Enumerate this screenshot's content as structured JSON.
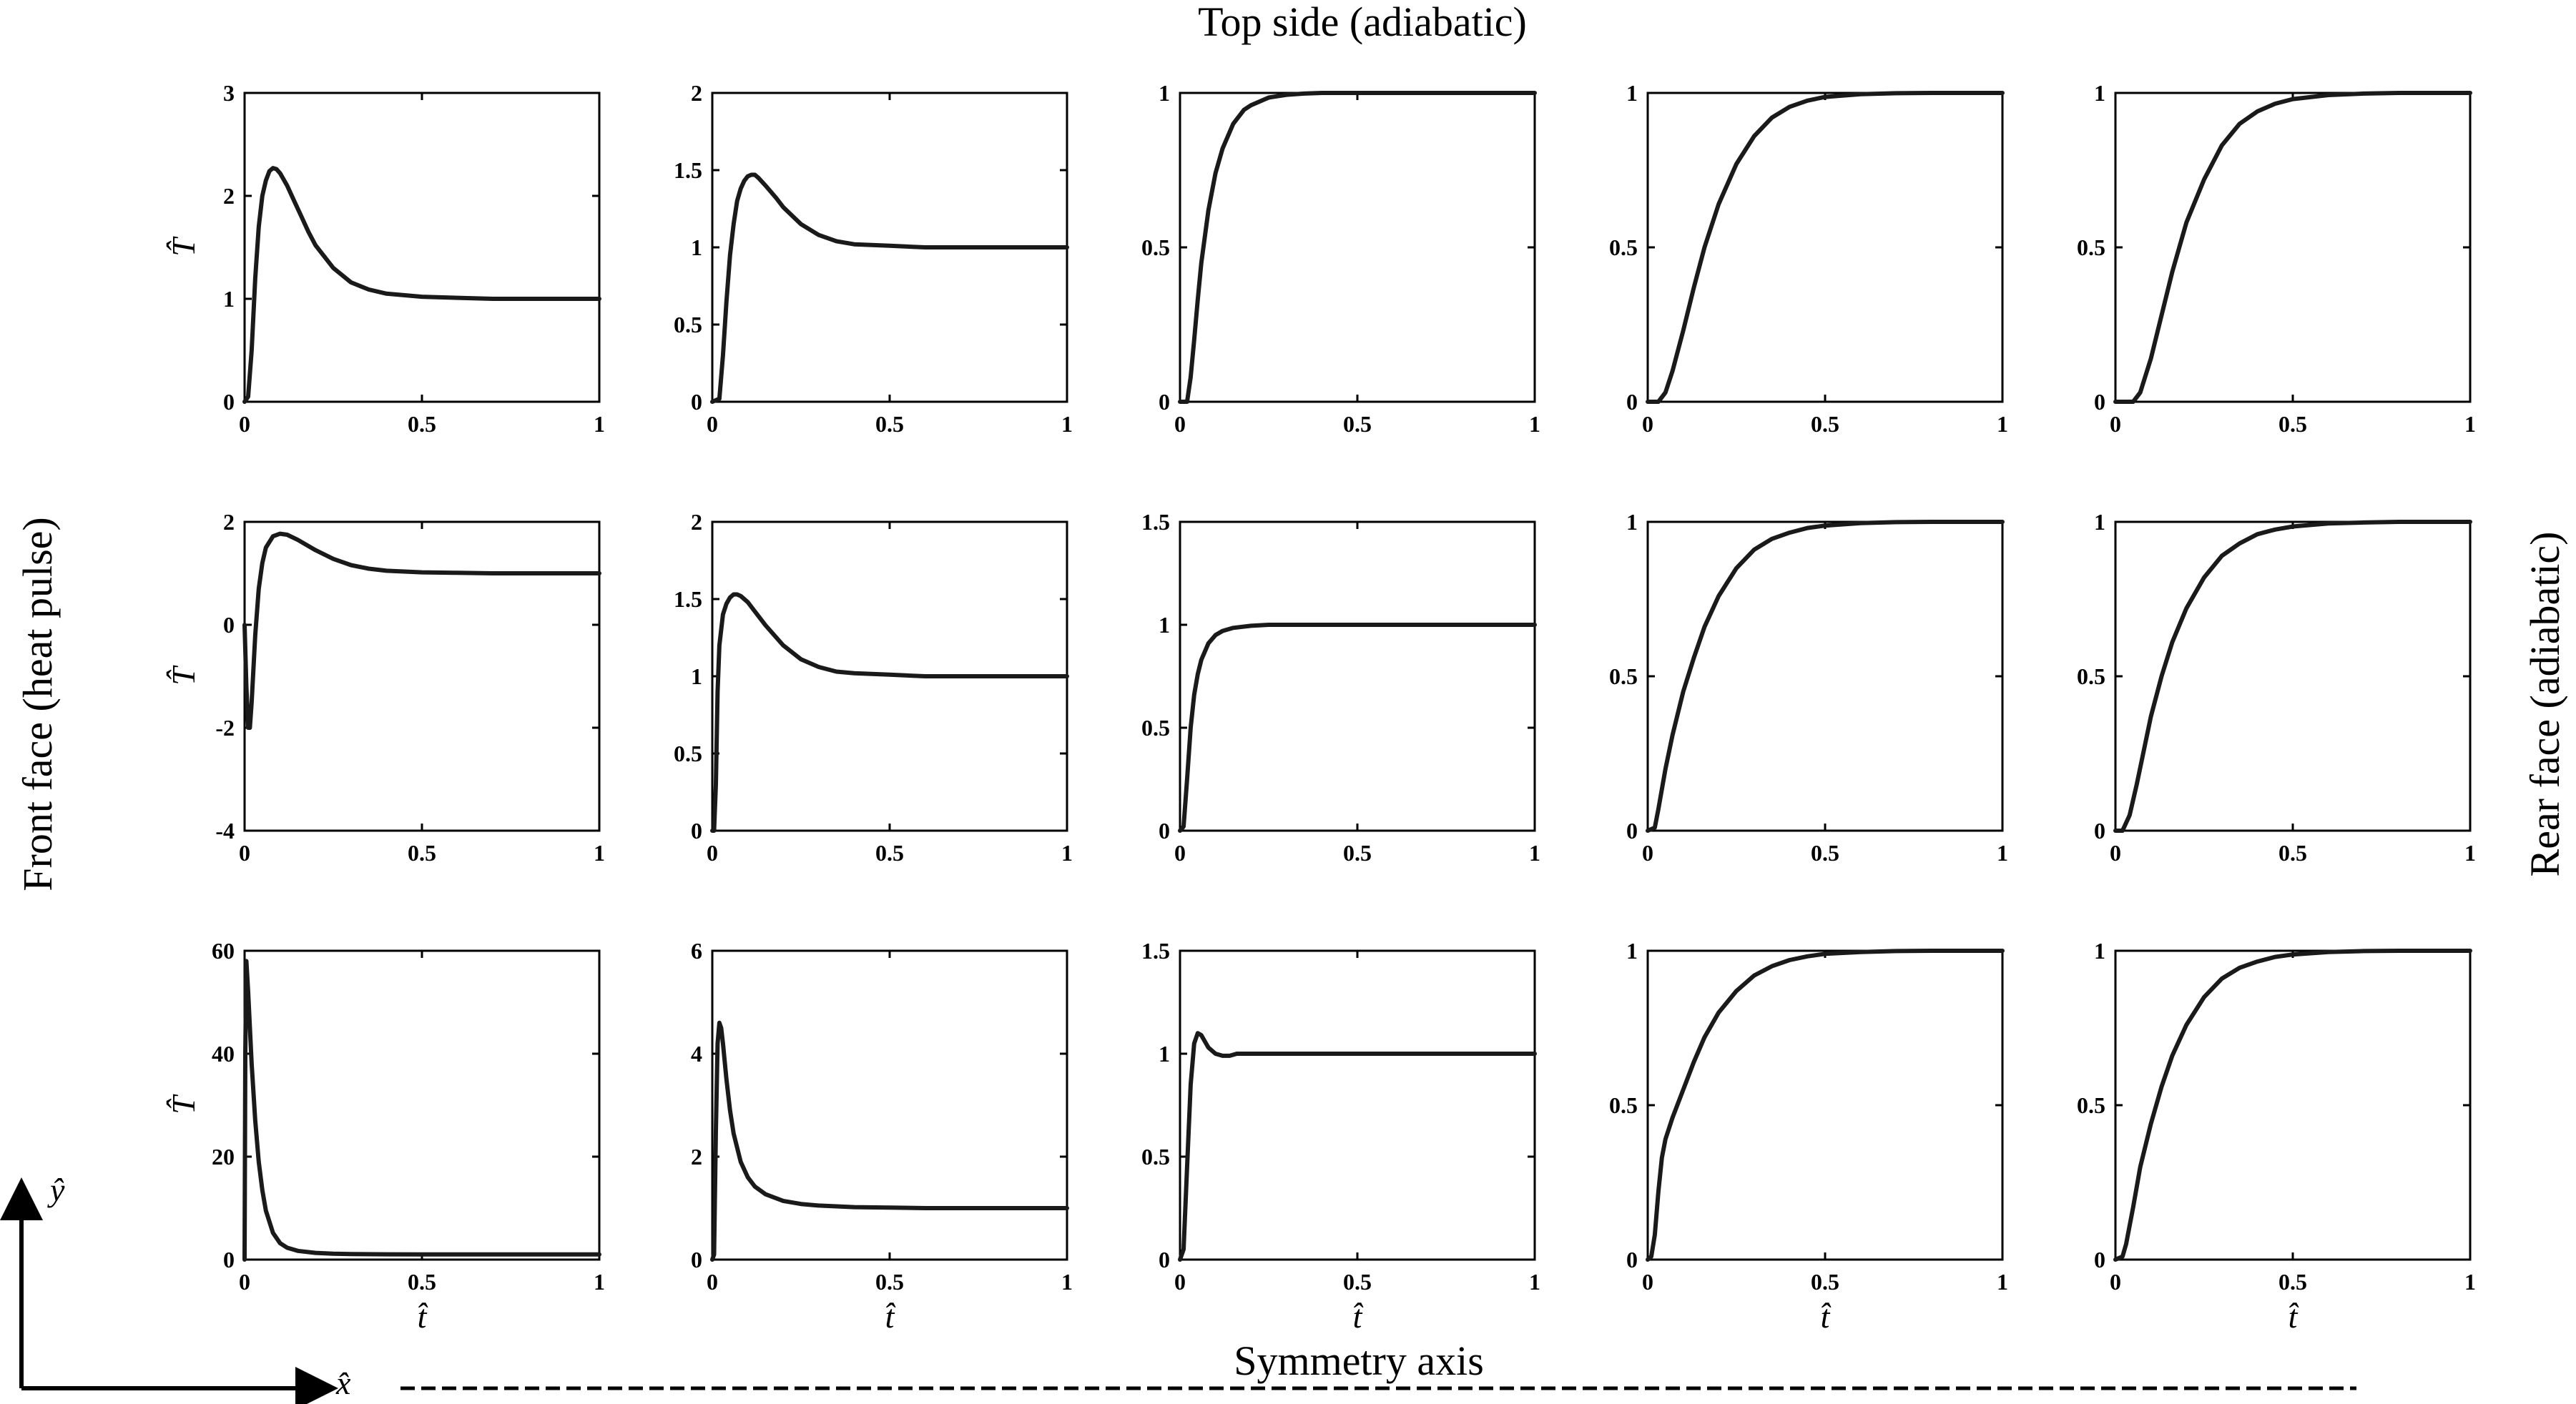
{
  "labels": {
    "top": "Top side (adiabatic)",
    "left": "Front face (heat pulse)",
    "right": "Rear face (adiabatic)",
    "bottom": "Symmetry axis",
    "x_arrow": "x̂",
    "y_arrow": "ŷ"
  },
  "colors": {
    "curve": "#1a1a1a",
    "axes": "#000000"
  },
  "chart_data": [
    {
      "type": "line",
      "row": 0,
      "col": 0,
      "xlim": [
        0,
        1
      ],
      "ylim": [
        0,
        3
      ],
      "xticks": [
        "0",
        "0.5",
        "1"
      ],
      "yticks": [
        "0",
        "1",
        "2",
        "3"
      ],
      "ylabel": "T̂",
      "xlabel": "",
      "x": [
        0,
        0.01,
        0.02,
        0.03,
        0.04,
        0.05,
        0.06,
        0.07,
        0.08,
        0.09,
        0.1,
        0.12,
        0.14,
        0.16,
        0.18,
        0.2,
        0.25,
        0.3,
        0.35,
        0.4,
        0.5,
        0.6,
        0.7,
        0.8,
        0.9,
        1.0
      ],
      "y": [
        0,
        0.05,
        0.5,
        1.2,
        1.7,
        2.0,
        2.15,
        2.24,
        2.27,
        2.26,
        2.22,
        2.1,
        1.95,
        1.8,
        1.65,
        1.52,
        1.3,
        1.16,
        1.09,
        1.05,
        1.02,
        1.01,
        1.0,
        1.0,
        1.0,
        1.0
      ]
    },
    {
      "type": "line",
      "row": 0,
      "col": 1,
      "xlim": [
        0,
        1
      ],
      "ylim": [
        0,
        2
      ],
      "xticks": [
        "0",
        "0.5",
        "1"
      ],
      "yticks": [
        "0",
        "0.5",
        "1",
        "1.5",
        "2"
      ],
      "xlabel": "",
      "x": [
        0,
        0.02,
        0.03,
        0.04,
        0.05,
        0.06,
        0.07,
        0.08,
        0.09,
        0.1,
        0.11,
        0.12,
        0.13,
        0.15,
        0.18,
        0.2,
        0.25,
        0.3,
        0.35,
        0.4,
        0.5,
        0.6,
        0.7,
        0.8,
        0.9,
        1.0
      ],
      "y": [
        0,
        0.02,
        0.3,
        0.65,
        0.95,
        1.15,
        1.3,
        1.38,
        1.43,
        1.46,
        1.47,
        1.47,
        1.45,
        1.4,
        1.32,
        1.26,
        1.15,
        1.08,
        1.04,
        1.02,
        1.01,
        1.0,
        1.0,
        1.0,
        1.0,
        1.0
      ]
    },
    {
      "type": "line",
      "row": 0,
      "col": 2,
      "xlim": [
        0,
        1
      ],
      "ylim": [
        0,
        1
      ],
      "xticks": [
        "0",
        "0.5",
        "1"
      ],
      "yticks": [
        "0",
        "0.5",
        "1"
      ],
      "xlabel": "",
      "x": [
        0,
        0.02,
        0.03,
        0.04,
        0.05,
        0.06,
        0.08,
        0.1,
        0.12,
        0.15,
        0.18,
        0.2,
        0.25,
        0.3,
        0.35,
        0.4,
        0.5,
        0.6,
        0.7,
        0.8,
        0.9,
        1.0
      ],
      "y": [
        0,
        0,
        0.08,
        0.2,
        0.33,
        0.45,
        0.62,
        0.74,
        0.82,
        0.9,
        0.945,
        0.96,
        0.985,
        0.994,
        0.998,
        1.0,
        1.0,
        1.0,
        1.0,
        1.0,
        1.0,
        1.0
      ]
    },
    {
      "type": "line",
      "row": 0,
      "col": 3,
      "xlim": [
        0,
        1
      ],
      "ylim": [
        0,
        1
      ],
      "xticks": [
        "0",
        "0.5",
        "1"
      ],
      "yticks": [
        "0",
        "0.5",
        "1"
      ],
      "xlabel": "",
      "x": [
        0,
        0.03,
        0.05,
        0.07,
        0.1,
        0.13,
        0.16,
        0.2,
        0.25,
        0.3,
        0.35,
        0.4,
        0.45,
        0.5,
        0.6,
        0.7,
        0.8,
        0.9,
        1.0
      ],
      "y": [
        0,
        0,
        0.03,
        0.1,
        0.23,
        0.37,
        0.5,
        0.64,
        0.77,
        0.86,
        0.92,
        0.955,
        0.975,
        0.987,
        0.996,
        0.999,
        1.0,
        1.0,
        1.0
      ]
    },
    {
      "type": "line",
      "row": 0,
      "col": 4,
      "xlim": [
        0,
        1
      ],
      "ylim": [
        0,
        1
      ],
      "xticks": [
        "0",
        "0.5",
        "1"
      ],
      "yticks": [
        "0",
        "0.5",
        "1"
      ],
      "xlabel": "",
      "x": [
        0,
        0.05,
        0.07,
        0.1,
        0.13,
        0.16,
        0.2,
        0.25,
        0.3,
        0.35,
        0.4,
        0.45,
        0.5,
        0.6,
        0.7,
        0.8,
        0.9,
        1.0
      ],
      "y": [
        0,
        0,
        0.03,
        0.14,
        0.28,
        0.42,
        0.58,
        0.72,
        0.83,
        0.9,
        0.94,
        0.965,
        0.98,
        0.993,
        0.998,
        1.0,
        1.0,
        1.0
      ]
    },
    {
      "type": "line",
      "row": 1,
      "col": 0,
      "xlim": [
        0,
        1
      ],
      "ylim": [
        -4,
        2
      ],
      "xticks": [
        "0",
        "0.5",
        "1"
      ],
      "yticks": [
        "-4",
        "-2",
        "0",
        "2"
      ],
      "ylabel": "T̂",
      "xlabel": "",
      "x": [
        0,
        0.005,
        0.01,
        0.015,
        0.02,
        0.03,
        0.04,
        0.05,
        0.06,
        0.08,
        0.1,
        0.12,
        0.15,
        0.2,
        0.25,
        0.3,
        0.35,
        0.4,
        0.5,
        0.6,
        0.7,
        0.8,
        0.9,
        1.0
      ],
      "y": [
        0,
        -1.2,
        -2.0,
        -2.0,
        -1.5,
        -0.2,
        0.7,
        1.2,
        1.5,
        1.72,
        1.77,
        1.75,
        1.65,
        1.45,
        1.28,
        1.16,
        1.09,
        1.05,
        1.02,
        1.01,
        1.0,
        1.0,
        1.0,
        1.0
      ]
    },
    {
      "type": "line",
      "row": 1,
      "col": 1,
      "xlim": [
        0,
        1
      ],
      "ylim": [
        0,
        2
      ],
      "xticks": [
        "0",
        "0.5",
        "1"
      ],
      "yticks": [
        "0",
        "0.5",
        "1",
        "1.5",
        "2"
      ],
      "xlabel": "",
      "x": [
        0,
        0.005,
        0.01,
        0.015,
        0.02,
        0.03,
        0.04,
        0.05,
        0.06,
        0.07,
        0.08,
        0.1,
        0.12,
        0.15,
        0.2,
        0.25,
        0.3,
        0.35,
        0.4,
        0.5,
        0.6,
        0.7,
        0.8,
        0.9,
        1.0
      ],
      "y": [
        0,
        0,
        0.3,
        0.9,
        1.2,
        1.4,
        1.47,
        1.51,
        1.53,
        1.53,
        1.52,
        1.48,
        1.42,
        1.33,
        1.2,
        1.11,
        1.06,
        1.03,
        1.02,
        1.01,
        1.0,
        1.0,
        1.0,
        1.0,
        1.0
      ]
    },
    {
      "type": "line",
      "row": 1,
      "col": 2,
      "xlim": [
        0,
        1
      ],
      "ylim": [
        0,
        1.5
      ],
      "xticks": [
        "0",
        "0.5",
        "1"
      ],
      "yticks": [
        "0",
        "0.5",
        "1",
        "1.5"
      ],
      "xlabel": "",
      "x": [
        0,
        0.01,
        0.02,
        0.03,
        0.04,
        0.05,
        0.06,
        0.08,
        0.1,
        0.12,
        0.15,
        0.2,
        0.25,
        0.3,
        0.4,
        0.5,
        0.6,
        0.7,
        0.8,
        0.9,
        1.0
      ],
      "y": [
        0,
        0.02,
        0.25,
        0.5,
        0.66,
        0.76,
        0.83,
        0.91,
        0.95,
        0.97,
        0.985,
        0.995,
        1.0,
        1.0,
        1.0,
        1.0,
        1.0,
        1.0,
        1.0,
        1.0,
        1.0
      ]
    },
    {
      "type": "line",
      "row": 1,
      "col": 3,
      "xlim": [
        0,
        1
      ],
      "ylim": [
        0,
        1
      ],
      "xticks": [
        "0",
        "0.5",
        "1"
      ],
      "yticks": [
        "0",
        "0.5",
        "1"
      ],
      "xlabel": "",
      "x": [
        0,
        0.02,
        0.03,
        0.05,
        0.07,
        0.1,
        0.13,
        0.16,
        0.2,
        0.25,
        0.3,
        0.35,
        0.4,
        0.45,
        0.5,
        0.6,
        0.7,
        0.8,
        0.9,
        1.0
      ],
      "y": [
        0,
        0.01,
        0.07,
        0.2,
        0.31,
        0.45,
        0.56,
        0.66,
        0.76,
        0.85,
        0.91,
        0.945,
        0.965,
        0.98,
        0.988,
        0.996,
        0.999,
        1.0,
        1.0,
        1.0
      ]
    },
    {
      "type": "line",
      "row": 1,
      "col": 4,
      "xlim": [
        0,
        1
      ],
      "ylim": [
        0,
        1
      ],
      "xticks": [
        "0",
        "0.5",
        "1"
      ],
      "yticks": [
        "0",
        "0.5",
        "1"
      ],
      "xlabel": "",
      "x": [
        0,
        0.02,
        0.04,
        0.06,
        0.08,
        0.1,
        0.13,
        0.16,
        0.2,
        0.25,
        0.3,
        0.35,
        0.4,
        0.45,
        0.5,
        0.6,
        0.7,
        0.8,
        0.9,
        1.0
      ],
      "y": [
        0,
        0,
        0.05,
        0.15,
        0.26,
        0.37,
        0.5,
        0.61,
        0.72,
        0.82,
        0.89,
        0.93,
        0.96,
        0.975,
        0.985,
        0.995,
        0.998,
        1.0,
        1.0,
        1.0
      ]
    },
    {
      "type": "line",
      "row": 2,
      "col": 0,
      "xlim": [
        0,
        1
      ],
      "ylim": [
        0,
        60
      ],
      "xticks": [
        "0",
        "0.5",
        "1"
      ],
      "yticks": [
        "0",
        "20",
        "40",
        "60"
      ],
      "ylabel": "T̂",
      "xlabel": "t̂",
      "x": [
        0,
        0.002,
        0.005,
        0.01,
        0.02,
        0.03,
        0.04,
        0.05,
        0.06,
        0.08,
        0.1,
        0.12,
        0.15,
        0.2,
        0.25,
        0.3,
        0.4,
        0.5,
        0.6,
        0.7,
        0.8,
        0.9,
        1.0
      ],
      "y": [
        0,
        40,
        58,
        52,
        38,
        27,
        19,
        13.5,
        9.5,
        5.2,
        3.2,
        2.3,
        1.7,
        1.3,
        1.15,
        1.08,
        1.03,
        1.01,
        1.0,
        1.0,
        1.0,
        1.0,
        1.0
      ]
    },
    {
      "type": "line",
      "row": 2,
      "col": 1,
      "xlim": [
        0,
        1
      ],
      "ylim": [
        0,
        6
      ],
      "xticks": [
        "0",
        "0.5",
        "1"
      ],
      "yticks": [
        "0",
        "2",
        "4",
        "6"
      ],
      "xlabel": "t̂",
      "x": [
        0,
        0.005,
        0.01,
        0.015,
        0.02,
        0.025,
        0.03,
        0.04,
        0.05,
        0.06,
        0.08,
        0.1,
        0.12,
        0.15,
        0.2,
        0.25,
        0.3,
        0.4,
        0.5,
        0.6,
        0.7,
        0.8,
        0.9,
        1.0
      ],
      "y": [
        0,
        0.1,
        2.5,
        4.2,
        4.6,
        4.5,
        4.2,
        3.5,
        2.9,
        2.45,
        1.9,
        1.6,
        1.42,
        1.27,
        1.14,
        1.08,
        1.05,
        1.02,
        1.01,
        1.0,
        1.0,
        1.0,
        1.0,
        1.0
      ]
    },
    {
      "type": "line",
      "row": 2,
      "col": 2,
      "xlim": [
        0,
        1
      ],
      "ylim": [
        0,
        1.5
      ],
      "xticks": [
        "0",
        "0.5",
        "1"
      ],
      "yticks": [
        "0",
        "0.5",
        "1",
        "1.5"
      ],
      "xlabel": "t̂",
      "x": [
        0,
        0.01,
        0.02,
        0.03,
        0.04,
        0.05,
        0.06,
        0.07,
        0.08,
        0.1,
        0.12,
        0.14,
        0.16,
        0.2,
        0.25,
        0.3,
        0.4,
        0.5,
        0.6,
        0.7,
        0.8,
        0.9,
        1.0
      ],
      "y": [
        0,
        0.05,
        0.45,
        0.85,
        1.05,
        1.1,
        1.09,
        1.06,
        1.03,
        1.0,
        0.99,
        0.99,
        1.0,
        1.0,
        1.0,
        1.0,
        1.0,
        1.0,
        1.0,
        1.0,
        1.0,
        1.0,
        1.0
      ]
    },
    {
      "type": "line",
      "row": 2,
      "col": 3,
      "xlim": [
        0,
        1
      ],
      "ylim": [
        0,
        1
      ],
      "xticks": [
        "0",
        "0.5",
        "1"
      ],
      "yticks": [
        "0",
        "0.5",
        "1"
      ],
      "xlabel": "t̂",
      "x": [
        0,
        0.01,
        0.02,
        0.03,
        0.04,
        0.05,
        0.07,
        0.1,
        0.13,
        0.16,
        0.2,
        0.25,
        0.3,
        0.35,
        0.4,
        0.45,
        0.5,
        0.6,
        0.7,
        0.8,
        0.9,
        1.0
      ],
      "y": [
        0,
        0.01,
        0.08,
        0.22,
        0.33,
        0.39,
        0.46,
        0.55,
        0.64,
        0.72,
        0.8,
        0.87,
        0.92,
        0.95,
        0.97,
        0.982,
        0.99,
        0.996,
        0.999,
        1.0,
        1.0,
        1.0
      ]
    },
    {
      "type": "line",
      "row": 2,
      "col": 4,
      "xlim": [
        0,
        1
      ],
      "ylim": [
        0,
        1
      ],
      "xticks": [
        "0",
        "0.5",
        "1"
      ],
      "yticks": [
        "0",
        "0.5",
        "1"
      ],
      "xlabel": "t̂",
      "x": [
        0,
        0.02,
        0.03,
        0.05,
        0.07,
        0.1,
        0.13,
        0.16,
        0.2,
        0.25,
        0.3,
        0.35,
        0.4,
        0.45,
        0.5,
        0.6,
        0.7,
        0.8,
        0.9,
        1.0
      ],
      "y": [
        0,
        0.01,
        0.05,
        0.17,
        0.3,
        0.44,
        0.56,
        0.66,
        0.76,
        0.85,
        0.91,
        0.945,
        0.965,
        0.98,
        0.988,
        0.996,
        0.999,
        1.0,
        1.0,
        1.0
      ]
    }
  ]
}
